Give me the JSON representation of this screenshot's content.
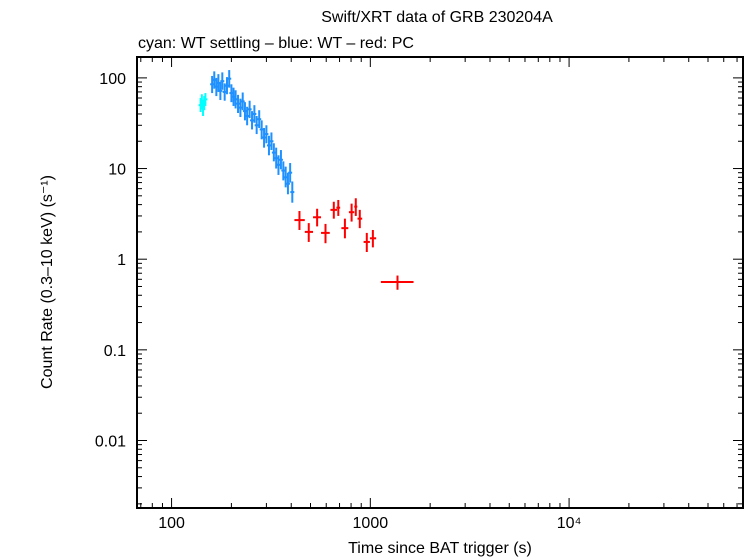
{
  "chart_data": {
    "type": "scatter",
    "title": "Swift/XRT data of GRB 230204A",
    "subtitle": "cyan: WT settling – blue: WT – red: PC",
    "xlabel": "Time since BAT trigger (s)",
    "ylabel": "Count Rate (0.3–10 keV) (s⁻¹)",
    "x_scale": "log",
    "y_scale": "log",
    "xlim": [
      67,
      75000
    ],
    "ylim": [
      0.0018,
      170
    ],
    "x_ticks": [
      {
        "value": 100,
        "label": "100"
      },
      {
        "value": 1000,
        "label": "1000"
      },
      {
        "value": 10000,
        "label": "10⁴"
      }
    ],
    "y_ticks": [
      {
        "value": 100,
        "label": "100"
      },
      {
        "value": 10,
        "label": "10"
      },
      {
        "value": 1,
        "label": "1"
      },
      {
        "value": 0.1,
        "label": "0.1"
      },
      {
        "value": 0.01,
        "label": "0.01"
      }
    ],
    "colors": {
      "wt_settling": "#00ffff",
      "wt": "#1e90ff",
      "pc": "#ff0000"
    },
    "series": [
      {
        "key": "wt_settling",
        "points": [
          {
            "x": 140,
            "y": 50,
            "yerr": [
              42,
              60
            ]
          },
          {
            "x": 142,
            "y": 56,
            "yerr": [
              47,
              66
            ]
          },
          {
            "x": 144,
            "y": 46,
            "yerr": [
              38,
              55
            ]
          },
          {
            "x": 146,
            "y": 53,
            "yerr": [
              44,
              63
            ]
          },
          {
            "x": 148,
            "y": 58,
            "yerr": [
              49,
              68
            ]
          }
        ]
      },
      {
        "key": "wt",
        "points": [
          {
            "x": 160,
            "y": 85,
            "yerr": [
              68,
              105
            ]
          },
          {
            "x": 164,
            "y": 95,
            "yerr": [
              76,
              118
            ]
          },
          {
            "x": 168,
            "y": 80,
            "yerr": [
              63,
              100
            ]
          },
          {
            "x": 172,
            "y": 88,
            "yerr": [
              70,
              110
            ]
          },
          {
            "x": 176,
            "y": 72,
            "yerr": [
              57,
              90
            ]
          },
          {
            "x": 180,
            "y": 92,
            "yerr": [
              74,
              115
            ]
          },
          {
            "x": 185,
            "y": 70,
            "yerr": [
              56,
              87
            ]
          },
          {
            "x": 190,
            "y": 82,
            "yerr": [
              66,
              102
            ]
          },
          {
            "x": 195,
            "y": 98,
            "yerr": [
              78,
              122
            ]
          },
          {
            "x": 200,
            "y": 68,
            "yerr": [
              54,
              85
            ]
          },
          {
            "x": 205,
            "y": 62,
            "yerr": [
              49,
              78
            ]
          },
          {
            "x": 210,
            "y": 58,
            "yerr": [
              46,
              73
            ]
          },
          {
            "x": 216,
            "y": 52,
            "yerr": [
              41,
              65
            ]
          },
          {
            "x": 222,
            "y": 47,
            "yerr": [
              37,
              59
            ]
          },
          {
            "x": 228,
            "y": 55,
            "yerr": [
              44,
              69
            ]
          },
          {
            "x": 234,
            "y": 43,
            "yerr": [
              34,
              54
            ]
          },
          {
            "x": 240,
            "y": 38,
            "yerr": [
              30,
              48
            ]
          },
          {
            "x": 247,
            "y": 45,
            "yerr": [
              36,
              56
            ]
          },
          {
            "x": 254,
            "y": 34,
            "yerr": [
              27,
              43
            ]
          },
          {
            "x": 261,
            "y": 40,
            "yerr": [
              32,
              50
            ]
          },
          {
            "x": 268,
            "y": 30,
            "yerr": [
              24,
              38
            ]
          },
          {
            "x": 276,
            "y": 35,
            "yerr": [
              28,
              44
            ]
          },
          {
            "x": 284,
            "y": 27,
            "yerr": [
              21,
              34
            ]
          },
          {
            "x": 292,
            "y": 22,
            "yerr": [
              17,
              28
            ]
          },
          {
            "x": 300,
            "y": 24,
            "yerr": [
              19,
              30
            ]
          },
          {
            "x": 309,
            "y": 18,
            "yerr": [
              14,
              23
            ]
          },
          {
            "x": 318,
            "y": 20,
            "yerr": [
              16,
              25
            ]
          },
          {
            "x": 327,
            "y": 15,
            "yerr": [
              12,
              19
            ]
          },
          {
            "x": 336,
            "y": 13,
            "yerr": [
              10,
              17
            ]
          },
          {
            "x": 345,
            "y": 11,
            "yerr": [
              8.5,
              14
            ]
          },
          {
            "x": 355,
            "y": 12.5,
            "yerr": [
              9.8,
              16
            ]
          },
          {
            "x": 365,
            "y": 9.5,
            "yerr": [
              7.4,
              12
            ]
          },
          {
            "x": 375,
            "y": 8,
            "yerr": [
              6.2,
              10.5
            ]
          },
          {
            "x": 385,
            "y": 6.8,
            "yerr": [
              5.2,
              9
            ]
          },
          {
            "x": 395,
            "y": 9,
            "yerr": [
              7,
              11.5
            ]
          },
          {
            "x": 405,
            "y": 5.5,
            "yerr": [
              4.2,
              7.2
            ]
          }
        ]
      },
      {
        "key": "pc",
        "points": [
          {
            "x": 440,
            "xerr": [
              415,
              468
            ],
            "y": 2.7,
            "yerr": [
              2.1,
              3.4
            ]
          },
          {
            "x": 490,
            "xerr": [
              468,
              515
            ],
            "y": 2.0,
            "yerr": [
              1.55,
              2.5
            ]
          },
          {
            "x": 540,
            "xerr": [
              515,
              565
            ],
            "y": 2.9,
            "yerr": [
              2.3,
              3.6
            ]
          },
          {
            "x": 595,
            "xerr": [
              565,
              625
            ],
            "y": 1.95,
            "yerr": [
              1.5,
              2.45
            ]
          },
          {
            "x": 655,
            "xerr": [
              630,
              680
            ],
            "y": 3.5,
            "yerr": [
              2.8,
              4.3
            ]
          },
          {
            "x": 690,
            "xerr": [
              675,
              705
            ],
            "y": 3.7,
            "yerr": [
              3.0,
              4.5
            ]
          },
          {
            "x": 745,
            "xerr": [
              715,
              775
            ],
            "y": 2.2,
            "yerr": [
              1.7,
              2.8
            ]
          },
          {
            "x": 805,
            "xerr": [
              780,
              830
            ],
            "y": 3.3,
            "yerr": [
              2.6,
              4.1
            ]
          },
          {
            "x": 845,
            "xerr": [
              830,
              860
            ],
            "y": 3.8,
            "yerr": [
              3.0,
              4.7
            ]
          },
          {
            "x": 885,
            "xerr": [
              862,
              910
            ],
            "y": 2.8,
            "yerr": [
              2.2,
              3.5
            ]
          },
          {
            "x": 960,
            "xerr": [
              925,
              995
            ],
            "y": 1.55,
            "yerr": [
              1.2,
              1.95
            ]
          },
          {
            "x": 1030,
            "xerr": [
              995,
              1070
            ],
            "y": 1.7,
            "yerr": [
              1.35,
              2.1
            ]
          },
          {
            "x": 1370,
            "xerr": [
              1130,
              1650
            ],
            "y": 0.56,
            "yerr": [
              0.46,
              0.66
            ]
          }
        ]
      }
    ]
  }
}
